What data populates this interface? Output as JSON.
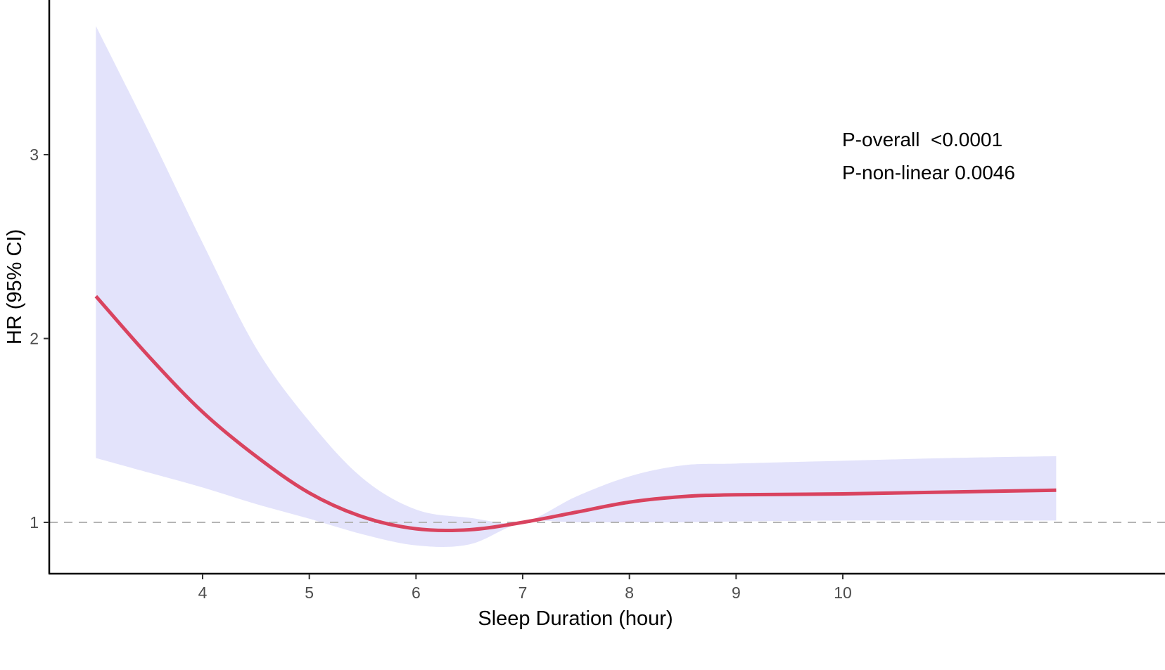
{
  "chart_data": {
    "type": "line",
    "title": "",
    "xlabel": "Sleep Duration (hour)",
    "ylabel": "HR (95% CI)",
    "xlim": [
      2.45,
      12.45
    ],
    "ylim": [
      0.725,
      3.84
    ],
    "x_ticks": [
      4,
      5,
      6,
      7,
      8,
      9,
      10
    ],
    "y_ticks": [
      1,
      2,
      3
    ],
    "reference_line": 1,
    "grid": false,
    "colors": {
      "line": "#d9435f",
      "band": "#e3e3fb",
      "reference": "#b5b5b5"
    },
    "annotations": [
      "P-overall  <0.0001",
      "P-non-linear 0.0046"
    ],
    "series": [
      {
        "x": [
          3,
          3.5,
          4,
          4.5,
          5,
          5.5,
          6,
          6.5,
          7,
          7.5,
          8,
          8.5,
          9,
          10,
          11,
          12
        ],
        "y": [
          2.23,
          1.9,
          1.6,
          1.36,
          1.16,
          1.03,
          0.965,
          0.96,
          1.0,
          1.055,
          1.11,
          1.14,
          1.15,
          1.155,
          1.165,
          1.175
        ],
        "lower": [
          1.35,
          1.27,
          1.19,
          1.1,
          1.02,
          0.935,
          0.875,
          0.88,
          1.0,
          1.0,
          1.0,
          1.0,
          1.005,
          1.01,
          1.01,
          1.01
        ],
        "upper": [
          3.7,
          3.12,
          2.52,
          1.95,
          1.55,
          1.24,
          1.07,
          1.025,
          1.0,
          1.14,
          1.25,
          1.31,
          1.32,
          1.335,
          1.35,
          1.36
        ]
      }
    ]
  }
}
